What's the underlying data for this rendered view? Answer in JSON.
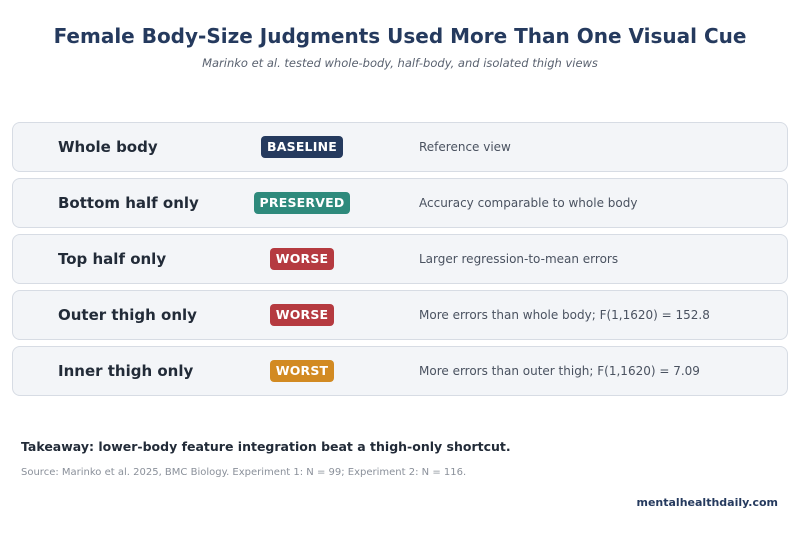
{
  "header": {
    "title": "Female Body-Size Judgments Used More Than One Visual Cue",
    "subtitle": "Marinko et al. tested whole-body, half-body, and isolated thigh views"
  },
  "rows": [
    {
      "label": "Whole body",
      "badge": "BASELINE",
      "badge_color": "#253a5e",
      "description": "Reference view"
    },
    {
      "label": "Bottom half only",
      "badge": "PRESERVED",
      "badge_color": "#2e8a7c",
      "description": "Accuracy comparable to whole body"
    },
    {
      "label": "Top half only",
      "badge": "WORSE",
      "badge_color": "#b53a40",
      "description": "Larger regression-to-mean errors"
    },
    {
      "label": "Outer thigh only",
      "badge": "WORSE",
      "badge_color": "#b53a40",
      "description": "More errors than whole body; F(1,1620) = 152.8"
    },
    {
      "label": "Inner thigh only",
      "badge": "WORST",
      "badge_color": "#d28a22",
      "description": "More errors than outer thigh; F(1,1620) = 7.09"
    }
  ],
  "footer": {
    "takeaway": "Takeaway: lower-body feature integration beat a thigh-only shortcut.",
    "source": "Source: Marinko et al. 2025, BMC Biology. Experiment 1: N = 99; Experiment 2: N = 116.",
    "brand": "mentalhealthdaily.com"
  }
}
